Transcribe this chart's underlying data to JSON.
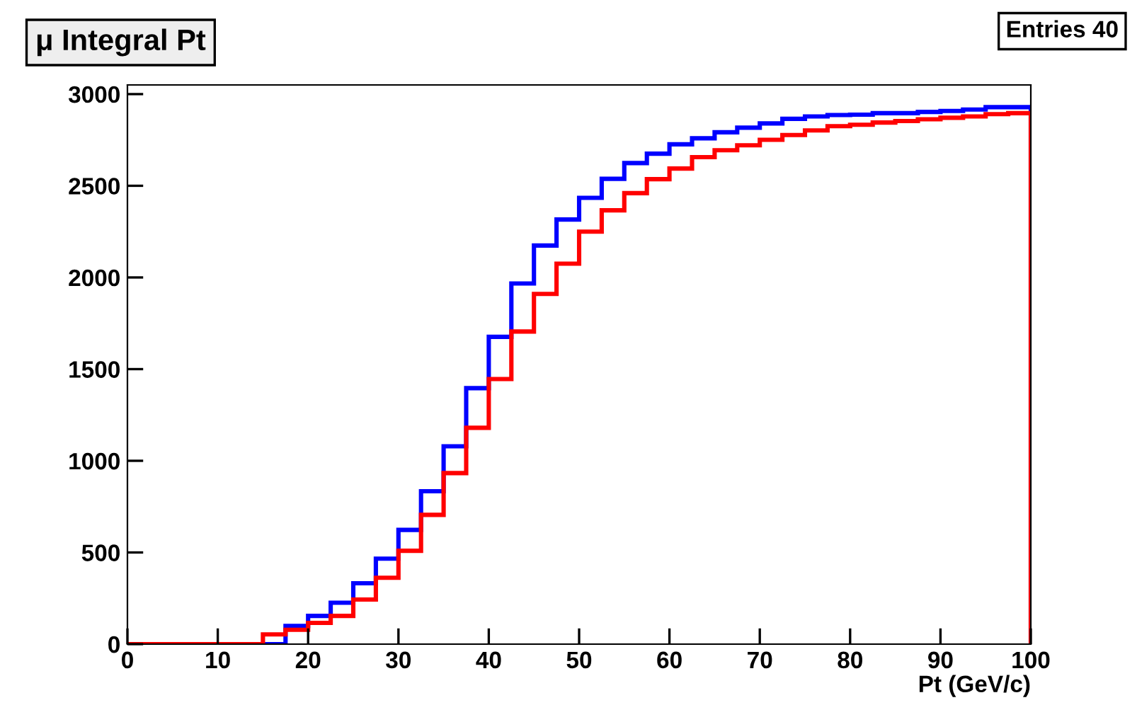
{
  "chart_data": {
    "type": "histogram",
    "title": "μ Integral Pt",
    "xlabel": "Pt (GeV/c)",
    "annotations": [
      "Entries 40"
    ],
    "bins": [
      0,
      2.5,
      5,
      7.5,
      10,
      12.5,
      15,
      17.5,
      20,
      22.5,
      25,
      27.5,
      30,
      32.5,
      35,
      37.5,
      40,
      42.5,
      45,
      47.5,
      50,
      52.5,
      55,
      57.5,
      60,
      62.5,
      65,
      67.5,
      70,
      72.5,
      75,
      77.5,
      80,
      82.5,
      85,
      87.5,
      90,
      92.5,
      95,
      97.5,
      100
    ],
    "series": [
      {
        "color": "#0000ff",
        "values": [
          0,
          0,
          0,
          0,
          0,
          0,
          0,
          99,
          154,
          226,
          332,
          466,
          623,
          834,
          1079,
          1396,
          1676,
          1967,
          2174,
          2316,
          2434,
          2538,
          2624,
          2675,
          2726,
          2759,
          2792,
          2817,
          2840,
          2865,
          2878,
          2886,
          2888,
          2896,
          2896,
          2903,
          2908,
          2916,
          2929,
          2929
        ]
      },
      {
        "color": "#ff0000",
        "values": [
          0,
          0,
          0,
          0,
          0,
          0,
          53,
          78,
          116,
          154,
          243,
          362,
          509,
          705,
          933,
          1180,
          1446,
          1705,
          1910,
          2075,
          2250,
          2366,
          2460,
          2536,
          2594,
          2656,
          2694,
          2721,
          2751,
          2777,
          2802,
          2825,
          2833,
          2845,
          2853,
          2863,
          2871,
          2878,
          2891,
          2896
        ]
      }
    ],
    "xlim": [
      0,
      100
    ],
    "xticks": [
      0,
      10,
      20,
      30,
      40,
      50,
      60,
      70,
      80,
      90,
      100
    ],
    "ylim": [
      0,
      3050
    ],
    "yticks": [
      0,
      500,
      1000,
      1500,
      2000,
      2500,
      3000
    ],
    "grid": false,
    "legend": false
  }
}
